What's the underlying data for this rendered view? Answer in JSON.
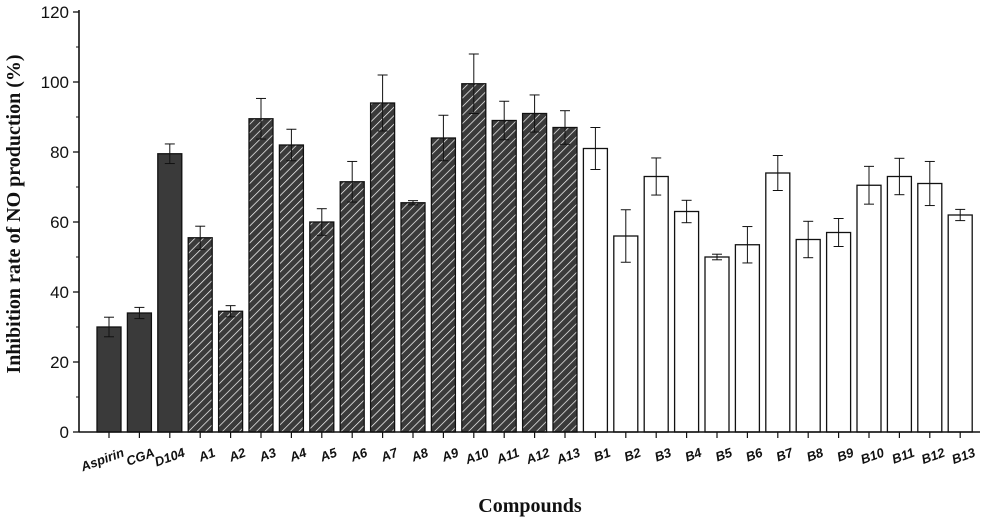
{
  "chart_data": {
    "type": "bar",
    "xlabel": "Compounds",
    "ylabel": "Inhibition rate of NO production (%)",
    "ylim": [
      0,
      120
    ],
    "yticks": [
      "0",
      "20",
      "40",
      "60",
      "80",
      "100",
      "120"
    ],
    "grid": false,
    "categories": [
      "Aspirin",
      "CGA",
      "D104",
      "A1",
      "A2",
      "A3",
      "A4",
      "A5",
      "A6",
      "A7",
      "A8",
      "A9",
      "A10",
      "A11",
      "A12",
      "A13",
      "B1",
      "B2",
      "B3",
      "B4",
      "B5",
      "B6",
      "B7",
      "B8",
      "B9",
      "B10",
      "B11",
      "B12",
      "B13"
    ],
    "values": [
      30,
      34,
      79.5,
      55.5,
      34.5,
      89.5,
      82,
      60,
      71.5,
      94,
      65.5,
      84,
      99.5,
      89,
      91,
      87,
      81,
      56,
      73,
      63,
      50,
      53.5,
      74,
      55,
      57,
      70.5,
      73,
      71,
      62
    ],
    "errors": [
      2.8,
      1.6,
      2.8,
      3.3,
      1.6,
      5.8,
      4.5,
      3.8,
      5.8,
      8,
      0.6,
      6.5,
      8.5,
      5.5,
      5.3,
      4.8,
      6,
      7.5,
      5.3,
      3.2,
      0.8,
      5.2,
      5,
      5.2,
      4,
      5.4,
      5.2,
      6.3,
      1.6
    ],
    "groups": {
      "solid": [
        "Aspirin",
        "CGA",
        "D104"
      ],
      "hatched": [
        "A1",
        "A2",
        "A3",
        "A4",
        "A5",
        "A6",
        "A7",
        "A8",
        "A9",
        "A10",
        "A11",
        "A12",
        "A13"
      ],
      "open": [
        "B1",
        "B2",
        "B3",
        "B4",
        "B5",
        "B6",
        "B7",
        "B8",
        "B9",
        "B10",
        "B11",
        "B12",
        "B13"
      ]
    },
    "colors": {
      "solid": "#3a3a3a",
      "hatched": "#3a3a3a",
      "hatch_line": "#ffffff",
      "open": "#ffffff",
      "stroke": "#111111"
    }
  }
}
